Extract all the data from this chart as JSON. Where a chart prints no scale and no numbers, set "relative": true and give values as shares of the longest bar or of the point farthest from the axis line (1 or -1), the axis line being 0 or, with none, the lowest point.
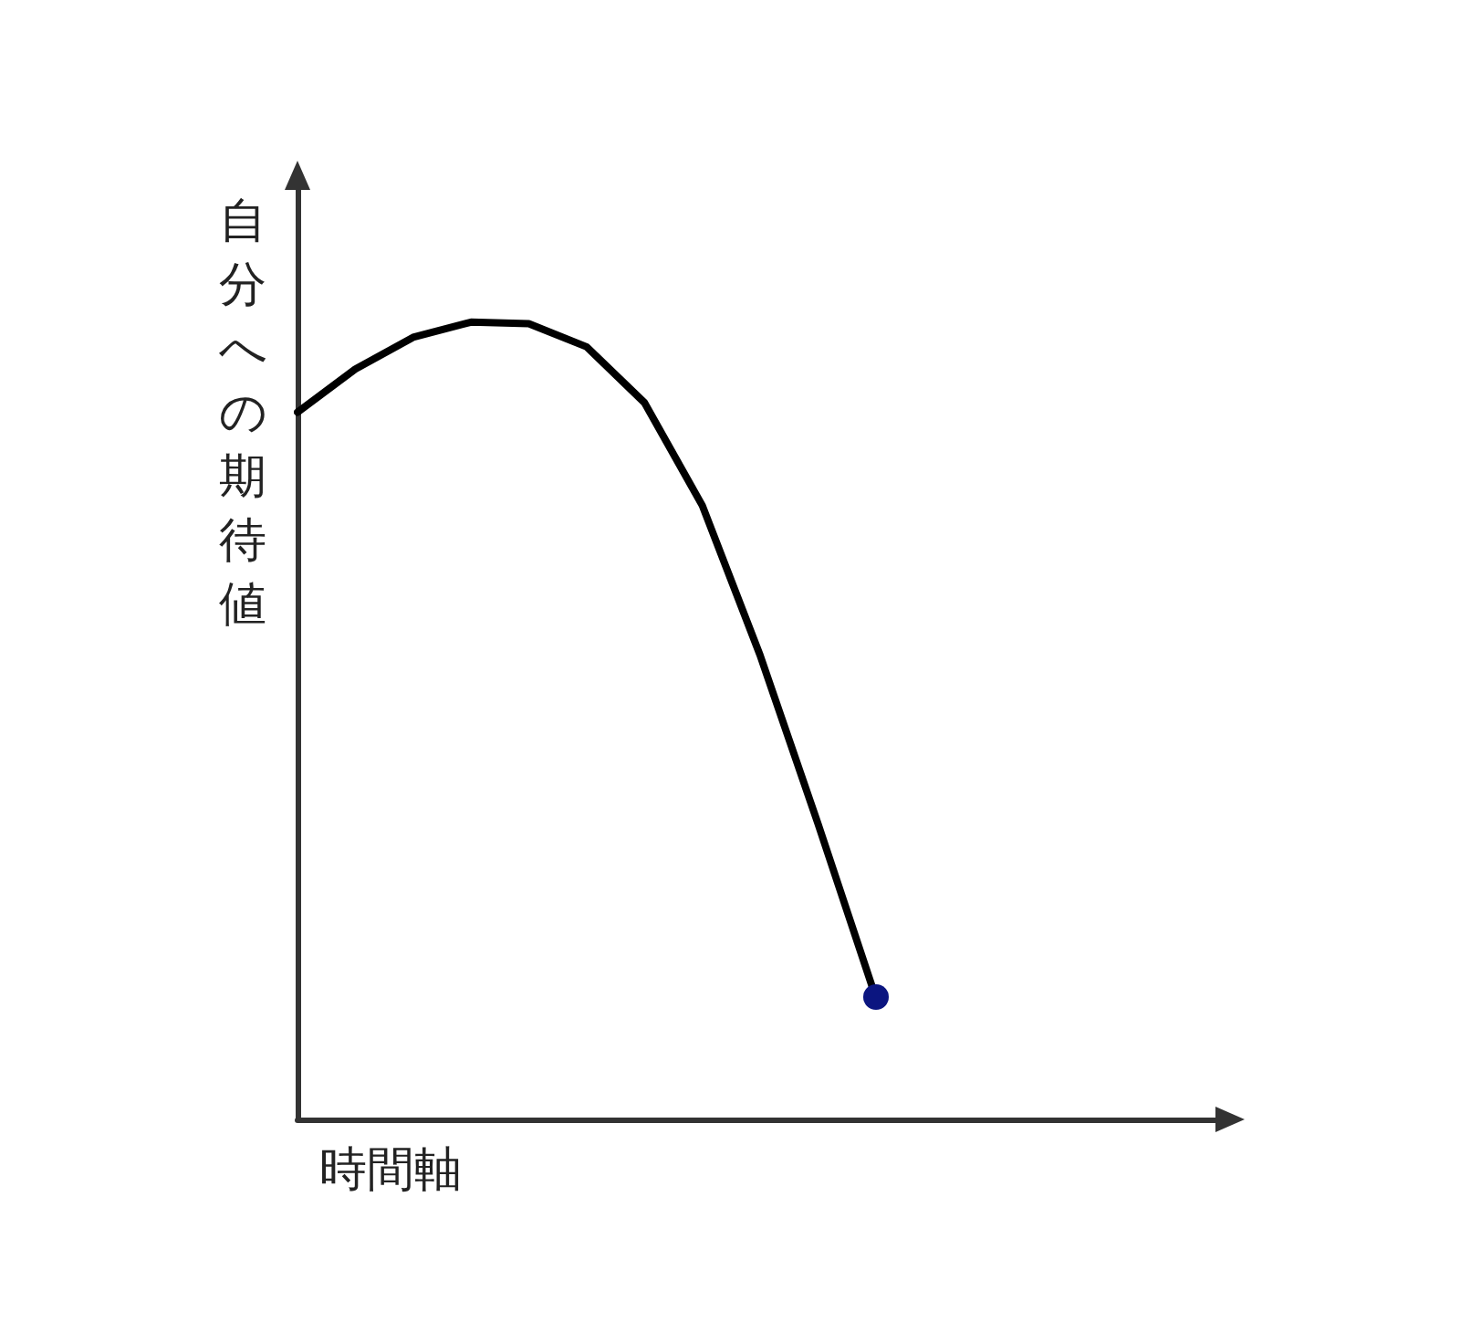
{
  "chart_data": {
    "type": "line",
    "xlabel": "時間軸",
    "ylabel": "自分への期待値",
    "relative": true,
    "categories": [
      null,
      null,
      null,
      null,
      null,
      null,
      null,
      null,
      null,
      null,
      null,
      null,
      null,
      null,
      null,
      null,
      null
    ],
    "series": [
      {
        "color": "#000000",
        "values": [
          0.887,
          0.941,
          0.981,
          1,
          0.998,
          0.969,
          0.899,
          0.77,
          0.582,
          0.371,
          0.153,
          null,
          null,
          null,
          null,
          null,
          null
        ]
      }
    ],
    "grid": false,
    "line_style": "solid"
  }
}
